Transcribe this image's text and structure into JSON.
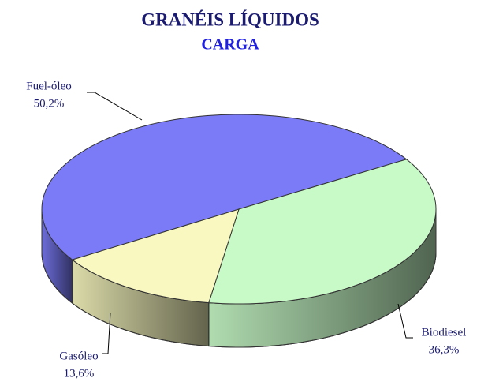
{
  "chart_data": {
    "type": "pie",
    "title": "GRANÉIS LÍQUIDOS",
    "subtitle": "CARGA",
    "categories": [
      "Fuel-óleo",
      "Biodiesel",
      "Gasóleo"
    ],
    "values": [
      50.2,
      36.3,
      13.6
    ],
    "value_labels": [
      "50,2%",
      "36,3%",
      "13,6%"
    ],
    "colors": [
      "#7b7bf7",
      "#c8fac8",
      "#f8f8c0"
    ]
  }
}
